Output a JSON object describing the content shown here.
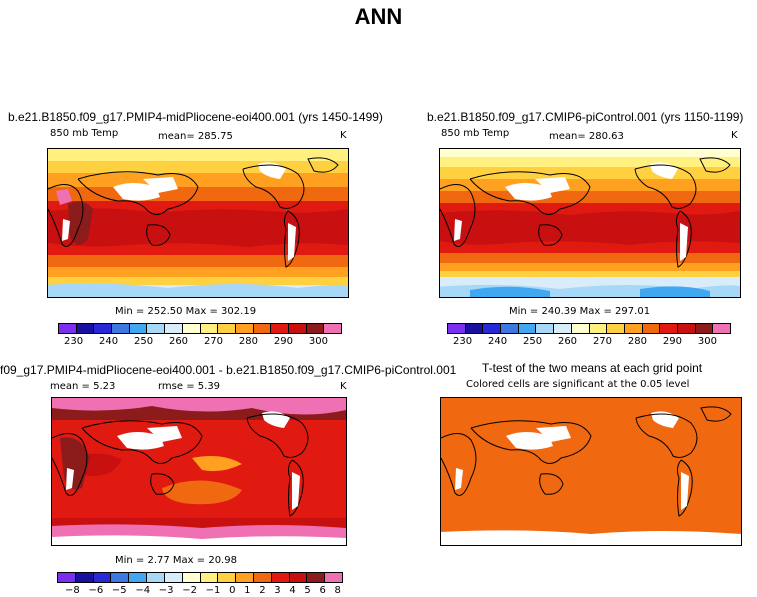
{
  "figure": {
    "title": "ANN"
  },
  "panels": {
    "top_left": {
      "title": "b.e21.B1850.f09_g17.PMIP4-midPliocene-eoi400.001 (yrs 1450-1499)",
      "left_label": "850 mb Temp",
      "mean_label": "mean= 285.75",
      "units": "K",
      "minmax": "Min = 252.50 Max = 302.19"
    },
    "top_right": {
      "title": "b.e21.B1850.f09_g17.CMIP6-piControl.001 (yrs 1150-1199)",
      "left_label": "850 mb Temp",
      "mean_label": "mean= 280.63",
      "units": "K",
      "minmax": "Min = 240.39 Max = 297.01"
    },
    "bottom_left": {
      "title": "f09_g17.PMIP4-midPliocene-eoi400.001 - b.e21.B1850.f09_g17.CMIP6-piControl.001",
      "mean_label": "mean =   5.23",
      "rmse_label": "rmse =   5.39",
      "units": "K",
      "minmax": "Min =   2.77 Max =  20.98"
    },
    "bottom_right": {
      "title": "T-test of the two means at each grid point",
      "subtitle": "Colored cells are significant at the 0.05 level"
    }
  },
  "colorbars": {
    "temp": {
      "colors": [
        "#7b2ff0",
        "#1a10a0",
        "#2828d8",
        "#3c78e0",
        "#40a8f0",
        "#a8d8f8",
        "#d8ecfa",
        "#ffffd0",
        "#fff080",
        "#ffd040",
        "#ffa020",
        "#f06810",
        "#e01a10",
        "#c81010",
        "#8c1c1c",
        "#f070b4"
      ],
      "labels": [
        "230",
        "240",
        "250",
        "260",
        "270",
        "280",
        "290",
        "300"
      ]
    },
    "diff": {
      "colors": [
        "#7b2ff0",
        "#1a10a0",
        "#2828d8",
        "#3c78e0",
        "#40a8f0",
        "#a8d8f8",
        "#d8ecfa",
        "#ffffd0",
        "#fff080",
        "#ffd040",
        "#ffa020",
        "#f06810",
        "#e01a10",
        "#c81010",
        "#8c1c1c",
        "#f070b4"
      ],
      "labels": [
        "−8",
        "−6",
        "−5",
        "−4",
        "−3",
        "−2",
        "−1",
        "0",
        "1",
        "2",
        "3",
        "4",
        "5",
        "6",
        "8"
      ]
    }
  }
}
